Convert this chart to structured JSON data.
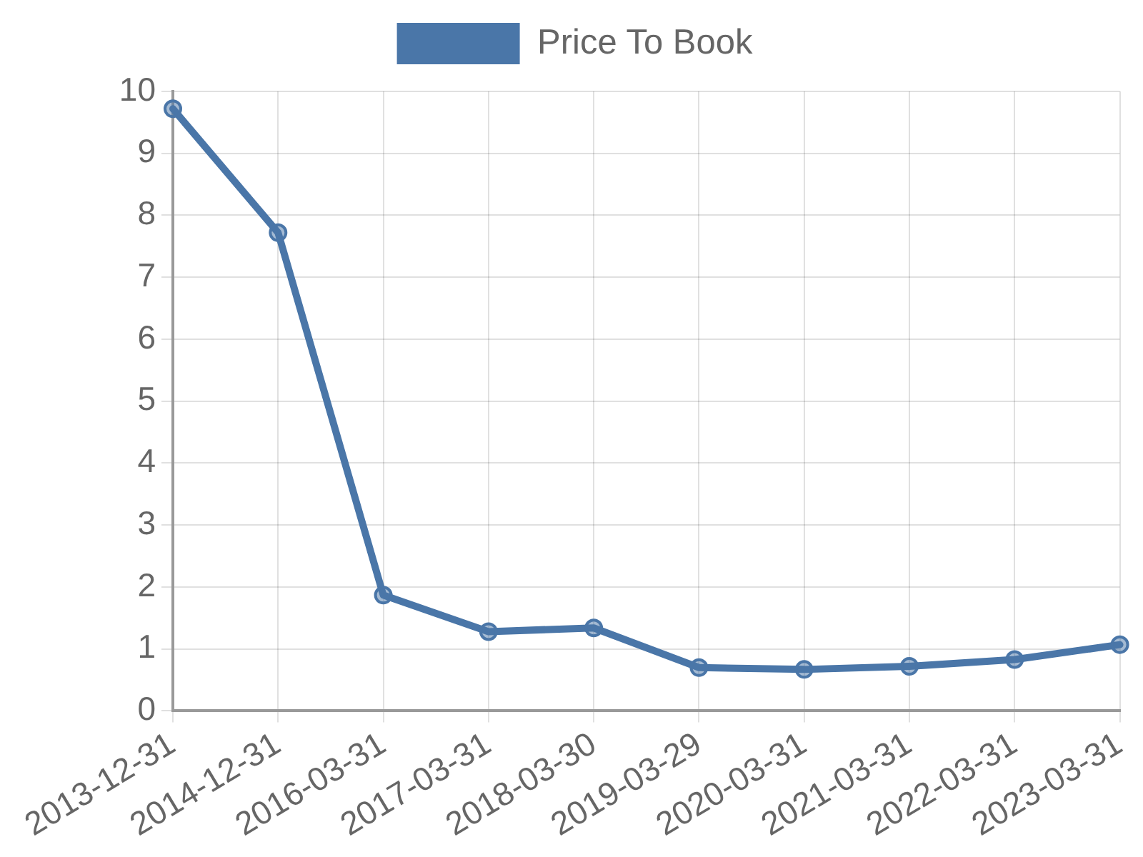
{
  "chart_data": {
    "type": "line",
    "categories": [
      "2013-12-31",
      "2014-12-31",
      "2016-03-31",
      "2017-03-31",
      "2018-03-30",
      "2019-03-29",
      "2020-03-31",
      "2021-03-31",
      "2022-03-31",
      "2023-03-31"
    ],
    "series": [
      {
        "name": "Price To Book",
        "color": "#4a76a8",
        "values": [
          9.72,
          7.72,
          1.87,
          1.28,
          1.34,
          0.7,
          0.67,
          0.72,
          0.83,
          1.07
        ]
      }
    ],
    "ylim": [
      0,
      10
    ],
    "yticks": [
      0,
      1,
      2,
      3,
      4,
      5,
      6,
      7,
      8,
      9,
      10
    ],
    "grid": true,
    "legend": "top",
    "marker": "circle"
  }
}
